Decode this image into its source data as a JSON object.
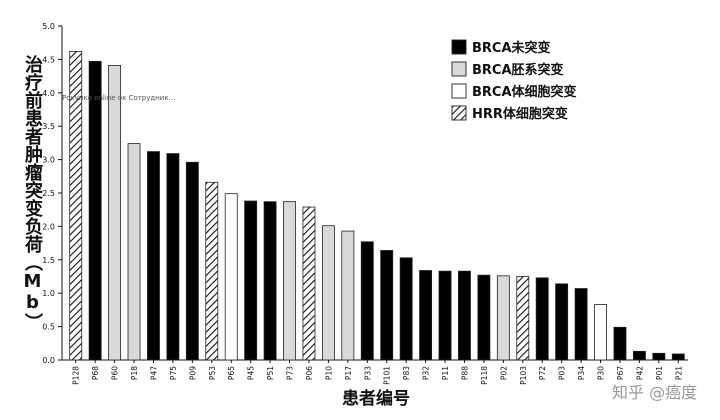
{
  "chart_data": {
    "type": "bar",
    "ylabel": "治疗前患者肿瘤突变负荷（Mb）",
    "xlabel": "患者编号",
    "ylim": [
      0,
      5
    ],
    "yticks": [
      "0.0",
      "0.5",
      "1.0",
      "1.5",
      "2.0",
      "2.5",
      "3.0",
      "3.5",
      "4.0",
      "4.5",
      "5.0"
    ],
    "grid": false,
    "legend_position": "top-right",
    "legend": [
      {
        "key": "brca_unmutated",
        "label": "BRCA未突变",
        "fill": "black"
      },
      {
        "key": "brca_germline",
        "label": "BRCA胚系突变",
        "fill": "lightgray"
      },
      {
        "key": "brca_somatic",
        "label": "BRCA体细胞突变",
        "fill": "white"
      },
      {
        "key": "hrr_somatic",
        "label": "HRR体细胞突变",
        "fill": "hatched"
      }
    ],
    "categories": [
      "P128",
      "P68",
      "P60",
      "P18",
      "P47",
      "P75",
      "P09",
      "P53",
      "P65",
      "P45",
      "P51",
      "P73",
      "P06",
      "P10",
      "P17",
      "P33",
      "P101",
      "P83",
      "P32",
      "P11",
      "P88",
      "P118",
      "P02",
      "P103",
      "P72",
      "P03",
      "P34",
      "P30",
      "P67",
      "P42",
      "P01",
      "P21"
    ],
    "values": [
      4.62,
      4.47,
      4.41,
      3.24,
      3.12,
      3.09,
      2.96,
      2.66,
      2.49,
      2.38,
      2.37,
      2.37,
      2.29,
      2.01,
      1.93,
      1.77,
      1.64,
      1.53,
      1.34,
      1.33,
      1.33,
      1.27,
      1.26,
      1.25,
      1.23,
      1.14,
      1.07,
      0.83,
      0.49,
      0.13,
      0.1,
      0.09
    ],
    "groups": [
      "brca_somatic_hrr",
      "x",
      "x",
      "x",
      "x",
      "x",
      "x",
      "x",
      "x",
      "x",
      "x",
      "x",
      "x",
      "x",
      "x",
      "x",
      "x",
      "x",
      "x",
      "x",
      "x",
      "x",
      "x",
      "x",
      "x",
      "x",
      "x",
      "x",
      "x",
      "x",
      "x",
      "x"
    ],
    "series_types": [
      "hrr_somatic",
      "brca_unmutated",
      "brca_germline",
      "brca_germline",
      "brca_unmutated",
      "brca_unmutated",
      "brca_unmutated",
      "hrr_somatic",
      "brca_somatic",
      "brca_unmutated",
      "brca_unmutated",
      "brca_germline",
      "hrr_somatic",
      "brca_germline",
      "brca_germline",
      "brca_unmutated",
      "brca_unmutated",
      "brca_unmutated",
      "brca_unmutated",
      "brca_unmutated",
      "brca_unmutated",
      "brca_unmutated",
      "brca_germline",
      "hrr_somatic",
      "brca_unmutated",
      "brca_unmutated",
      "brca_unmutated",
      "brca_somatic",
      "brca_unmutated",
      "brca_unmutated",
      "brca_unmutated",
      "brca_unmutated"
    ],
    "colors": {
      "black": "#000000",
      "lightgray": "#d9d9d9",
      "white": "#ffffff",
      "outline": "#222222"
    }
  },
  "overlay_text": "Рокупке online ок Сотрудник…",
  "watermark": "知乎 @癌度"
}
